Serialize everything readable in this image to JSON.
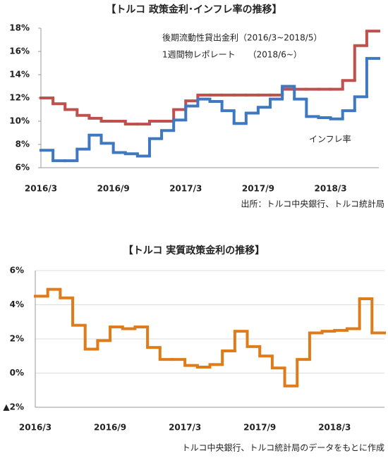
{
  "chart_data": [
    {
      "type": "line",
      "step": true,
      "title": "【トルコ 政策金利･インフレ率の推移】",
      "categories": [
        "2016/3",
        null,
        null,
        null,
        null,
        null,
        "2016/9",
        null,
        null,
        null,
        null,
        null,
        "2017/3",
        null,
        null,
        null,
        null,
        null,
        "2017/9",
        null,
        null,
        null,
        null,
        null,
        "2018/3",
        null,
        null,
        null
      ],
      "series": [
        {
          "color": "#c0504d",
          "values": [
            12.0,
            11.5,
            11.0,
            10.5,
            10.25,
            10.0,
            10.0,
            9.75,
            9.75,
            10.0,
            10.0,
            11.0,
            11.75,
            12.25,
            12.25,
            12.25,
            12.25,
            12.25,
            12.25,
            12.25,
            12.75,
            12.75,
            12.75,
            12.75,
            12.75,
            13.5,
            16.5,
            17.75
          ]
        },
        {
          "color": "#3f78c0",
          "values": [
            7.5,
            6.6,
            6.6,
            7.6,
            8.8,
            8.1,
            7.3,
            7.2,
            7.0,
            8.5,
            9.2,
            10.1,
            11.3,
            11.9,
            11.7,
            10.9,
            9.8,
            10.7,
            11.2,
            11.9,
            13.0,
            11.9,
            10.4,
            10.3,
            10.2,
            10.9,
            12.1,
            15.4
          ]
        }
      ],
      "ylim": [
        6,
        18
      ],
      "yticks": [
        {
          "value": 6,
          "label": "6%"
        },
        {
          "value": 8,
          "label": "8%"
        },
        {
          "value": 10,
          "label": "10%"
        },
        {
          "value": 12,
          "label": "12%"
        },
        {
          "value": 14,
          "label": "14%"
        },
        {
          "value": 16,
          "label": "16%"
        },
        {
          "value": 18,
          "label": "18%"
        }
      ],
      "grid": false,
      "annotations": [
        "後期流動性貸出金利（2016/3~2018/5）",
        "1週間物レポレート　　（2018/6~）",
        "インフレ率"
      ],
      "source": "出所：トルコ中央銀行、トルコ統計局"
    },
    {
      "type": "line",
      "step": true,
      "title": "【トルコ 実質政策金利の推移】",
      "categories": [
        "2016/3",
        null,
        null,
        null,
        null,
        null,
        "2016/9",
        null,
        null,
        null,
        null,
        null,
        "2017/3",
        null,
        null,
        null,
        null,
        null,
        "2017/9",
        null,
        null,
        null,
        null,
        null,
        "2018/3",
        null,
        null,
        null
      ],
      "series": [
        {
          "color": "#e07b1a",
          "values": [
            4.5,
            4.9,
            4.4,
            2.8,
            1.4,
            1.9,
            2.7,
            2.6,
            2.7,
            1.5,
            0.8,
            0.8,
            0.45,
            0.35,
            0.5,
            1.3,
            2.45,
            1.55,
            1.0,
            0.3,
            -0.75,
            0.8,
            2.35,
            2.45,
            2.5,
            2.6,
            4.35,
            2.35
          ]
        }
      ],
      "ylim": [
        -2,
        6
      ],
      "yticks": [
        {
          "value": -2,
          "label": "▲2%"
        },
        {
          "value": 0,
          "label": "0%"
        },
        {
          "value": 2,
          "label": "2%"
        },
        {
          "value": 4,
          "label": "4%"
        },
        {
          "value": 6,
          "label": "6%"
        }
      ],
      "grid": true,
      "source": "トルコ中央銀行、トルコ統計局のデータをもとに作成"
    }
  ]
}
